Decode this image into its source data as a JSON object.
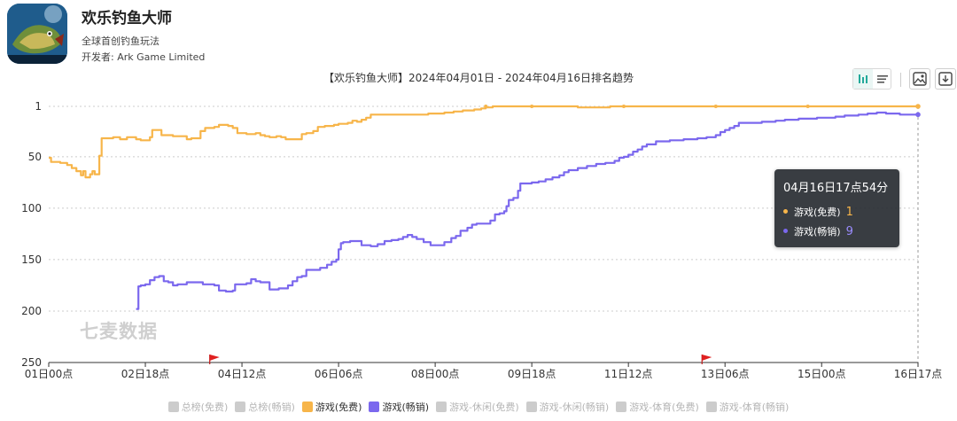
{
  "app": {
    "name": "欢乐钓鱼大师",
    "subtitle": "全球首创钓鱼玩法",
    "developer_label": "开发者: Ark Game Limited",
    "icon": "fish-app-icon"
  },
  "toolbar": {
    "view_chart_icon": "bar-chart-icon",
    "view_list_icon": "list-icon",
    "image_icon": "image-icon",
    "download_icon": "download-icon"
  },
  "watermark": "七麦数据",
  "tooltip": {
    "time": "04月16日17点54分",
    "rows": [
      {
        "label": "游戏(免费)",
        "value": "1",
        "color": "#f7b54a"
      },
      {
        "label": "游戏(畅销)",
        "value": "9",
        "color": "#7b68ee"
      }
    ]
  },
  "legend": [
    {
      "label": "总榜(免费)",
      "active": false,
      "color": "#cccccc"
    },
    {
      "label": "总榜(畅销)",
      "active": false,
      "color": "#cccccc"
    },
    {
      "label": "游戏(免费)",
      "active": true,
      "color": "#f7b54a"
    },
    {
      "label": "游戏(畅销)",
      "active": true,
      "color": "#7b68ee"
    },
    {
      "label": "游戏-休闲(免费)",
      "active": false,
      "color": "#cccccc"
    },
    {
      "label": "游戏-休闲(畅销)",
      "active": false,
      "color": "#cccccc"
    },
    {
      "label": "游戏-体育(免费)",
      "active": false,
      "color": "#cccccc"
    },
    {
      "label": "游戏-体育(畅销)",
      "active": false,
      "color": "#cccccc"
    }
  ],
  "chart_data": {
    "type": "line",
    "title": "【欢乐钓鱼大师】2024年04月01日 - 2024年04月16日排名趋势",
    "y_inverted": true,
    "ylim": [
      1,
      250
    ],
    "y_ticks": [
      1,
      50,
      100,
      150,
      200,
      250
    ],
    "xlim": [
      0,
      377.9
    ],
    "x_unit": "hours since 01日00点",
    "x_ticks": [
      {
        "label": "01日00点",
        "x": 0
      },
      {
        "label": "02日18点",
        "x": 42
      },
      {
        "label": "04日12点",
        "x": 84
      },
      {
        "label": "06日06点",
        "x": 126
      },
      {
        "label": "08日00点",
        "x": 168
      },
      {
        "label": "09日18点",
        "x": 210
      },
      {
        "label": "11日12点",
        "x": 252
      },
      {
        "label": "13日06点",
        "x": 294
      },
      {
        "label": "15日00点",
        "x": 336
      },
      {
        "label": "16日17点",
        "x": 377.9
      }
    ],
    "flags": [
      {
        "x": 70,
        "color": "#e02020"
      },
      {
        "x": 284,
        "color": "#e02020"
      }
    ],
    "grid": true,
    "series": [
      {
        "name": "游戏(免费)",
        "color": "#f7b54a",
        "points": [
          [
            0,
            51
          ],
          [
            1,
            55
          ],
          [
            5,
            56
          ],
          [
            8,
            58
          ],
          [
            10,
            61
          ],
          [
            12,
            64
          ],
          [
            14,
            68
          ],
          [
            15,
            64
          ],
          [
            16,
            70
          ],
          [
            18,
            67
          ],
          [
            19,
            64
          ],
          [
            20,
            67
          ],
          [
            22,
            49
          ],
          [
            23,
            32
          ],
          [
            28,
            31
          ],
          [
            31,
            33
          ],
          [
            34,
            31
          ],
          [
            38,
            33
          ],
          [
            40,
            34
          ],
          [
            42,
            34
          ],
          [
            44,
            31
          ],
          [
            45,
            24
          ],
          [
            48,
            24
          ],
          [
            49,
            29
          ],
          [
            54,
            30
          ],
          [
            58,
            30
          ],
          [
            60,
            33
          ],
          [
            62,
            32
          ],
          [
            64,
            32
          ],
          [
            66,
            25
          ],
          [
            68,
            22
          ],
          [
            72,
            21
          ],
          [
            74,
            19
          ],
          [
            78,
            20
          ],
          [
            80,
            22
          ],
          [
            82,
            27
          ],
          [
            86,
            28
          ],
          [
            88,
            28
          ],
          [
            90,
            27
          ],
          [
            92,
            29
          ],
          [
            94,
            30
          ],
          [
            96,
            31
          ],
          [
            99,
            30
          ],
          [
            101,
            31
          ],
          [
            103,
            33
          ],
          [
            108,
            33
          ],
          [
            110,
            28
          ],
          [
            112,
            27
          ],
          [
            115,
            25
          ],
          [
            117,
            21
          ],
          [
            120,
            20
          ],
          [
            124,
            19
          ],
          [
            126,
            18
          ],
          [
            130,
            17
          ],
          [
            132,
            15
          ],
          [
            134,
            16
          ],
          [
            136,
            14
          ],
          [
            138,
            12
          ],
          [
            140,
            9
          ],
          [
            145,
            9
          ],
          [
            150,
            9
          ],
          [
            158,
            9
          ],
          [
            165,
            8
          ],
          [
            172,
            7
          ],
          [
            176,
            6
          ],
          [
            180,
            5
          ],
          [
            182,
            5
          ],
          [
            185,
            4
          ],
          [
            188,
            3
          ],
          [
            190,
            2
          ],
          [
            193,
            1
          ],
          [
            196,
            1
          ],
          [
            200,
            1
          ],
          [
            210,
            1
          ],
          [
            215,
            1
          ],
          [
            220,
            1
          ],
          [
            230,
            2
          ],
          [
            240,
            2
          ],
          [
            244,
            1
          ],
          [
            250,
            1
          ],
          [
            260,
            1
          ],
          [
            270,
            1
          ],
          [
            300,
            1
          ],
          [
            340,
            1
          ],
          [
            377.9,
            1
          ]
        ]
      },
      {
        "name": "游戏(畅销)",
        "color": "#7b68ee",
        "points": [
          [
            38,
            198
          ],
          [
            39,
            176
          ],
          [
            40,
            175
          ],
          [
            42,
            174
          ],
          [
            44,
            170
          ],
          [
            46,
            167
          ],
          [
            48,
            166
          ],
          [
            50,
            171
          ],
          [
            52,
            172
          ],
          [
            54,
            175
          ],
          [
            56,
            174
          ],
          [
            60,
            172
          ],
          [
            64,
            172
          ],
          [
            67,
            174
          ],
          [
            70,
            174
          ],
          [
            72,
            175
          ],
          [
            74,
            180
          ],
          [
            77,
            181
          ],
          [
            80,
            180
          ],
          [
            81,
            174
          ],
          [
            84,
            174
          ],
          [
            86,
            173
          ],
          [
            88,
            169
          ],
          [
            90,
            171
          ],
          [
            92,
            172
          ],
          [
            94,
            172
          ],
          [
            96,
            179
          ],
          [
            100,
            178
          ],
          [
            104,
            175
          ],
          [
            106,
            171
          ],
          [
            108,
            167
          ],
          [
            110,
            166
          ],
          [
            112,
            160
          ],
          [
            115,
            160
          ],
          [
            118,
            158
          ],
          [
            121,
            155
          ],
          [
            123,
            152
          ],
          [
            125,
            150
          ],
          [
            126,
            140
          ],
          [
            127,
            134
          ],
          [
            128,
            133
          ],
          [
            131,
            132
          ],
          [
            136,
            136
          ],
          [
            140,
            137
          ],
          [
            143,
            135
          ],
          [
            146,
            132
          ],
          [
            149,
            131
          ],
          [
            152,
            130
          ],
          [
            154,
            128
          ],
          [
            156,
            126
          ],
          [
            158,
            128
          ],
          [
            160,
            130
          ],
          [
            163,
            133
          ],
          [
            166,
            136
          ],
          [
            170,
            136
          ],
          [
            172,
            133
          ],
          [
            174,
            133
          ],
          [
            175,
            129
          ],
          [
            177,
            127
          ],
          [
            179,
            122
          ],
          [
            182,
            119
          ],
          [
            184,
            116
          ],
          [
            186,
            115
          ],
          [
            190,
            115
          ],
          [
            192,
            112
          ],
          [
            194,
            106
          ],
          [
            196,
            105
          ],
          [
            198,
            103
          ],
          [
            199,
            98
          ],
          [
            200,
            92
          ],
          [
            202,
            90
          ],
          [
            204,
            83
          ],
          [
            205,
            76
          ],
          [
            210,
            75
          ],
          [
            213,
            74
          ],
          [
            216,
            72
          ],
          [
            219,
            70
          ],
          [
            222,
            68
          ],
          [
            224,
            65
          ],
          [
            226,
            63
          ],
          [
            230,
            61
          ],
          [
            234,
            59
          ],
          [
            238,
            57
          ],
          [
            242,
            56
          ],
          [
            246,
            54
          ],
          [
            248,
            51
          ],
          [
            250,
            50
          ],
          [
            252,
            48
          ],
          [
            254,
            45
          ],
          [
            256,
            43
          ],
          [
            258,
            40
          ],
          [
            260,
            38
          ],
          [
            264,
            35
          ],
          [
            270,
            34
          ],
          [
            276,
            33
          ],
          [
            282,
            32
          ],
          [
            286,
            31
          ],
          [
            290,
            29
          ],
          [
            292,
            26
          ],
          [
            294,
            24
          ],
          [
            296,
            22
          ],
          [
            298,
            20
          ],
          [
            300,
            17
          ],
          [
            306,
            17
          ],
          [
            310,
            16
          ],
          [
            316,
            15
          ],
          [
            320,
            14
          ],
          [
            326,
            13
          ],
          [
            334,
            12
          ],
          [
            342,
            11
          ],
          [
            346,
            10
          ],
          [
            352,
            9
          ],
          [
            356,
            8
          ],
          [
            360,
            7
          ],
          [
            364,
            8
          ],
          [
            370,
            9
          ],
          [
            374,
            9
          ],
          [
            377.9,
            9
          ]
        ]
      }
    ]
  }
}
